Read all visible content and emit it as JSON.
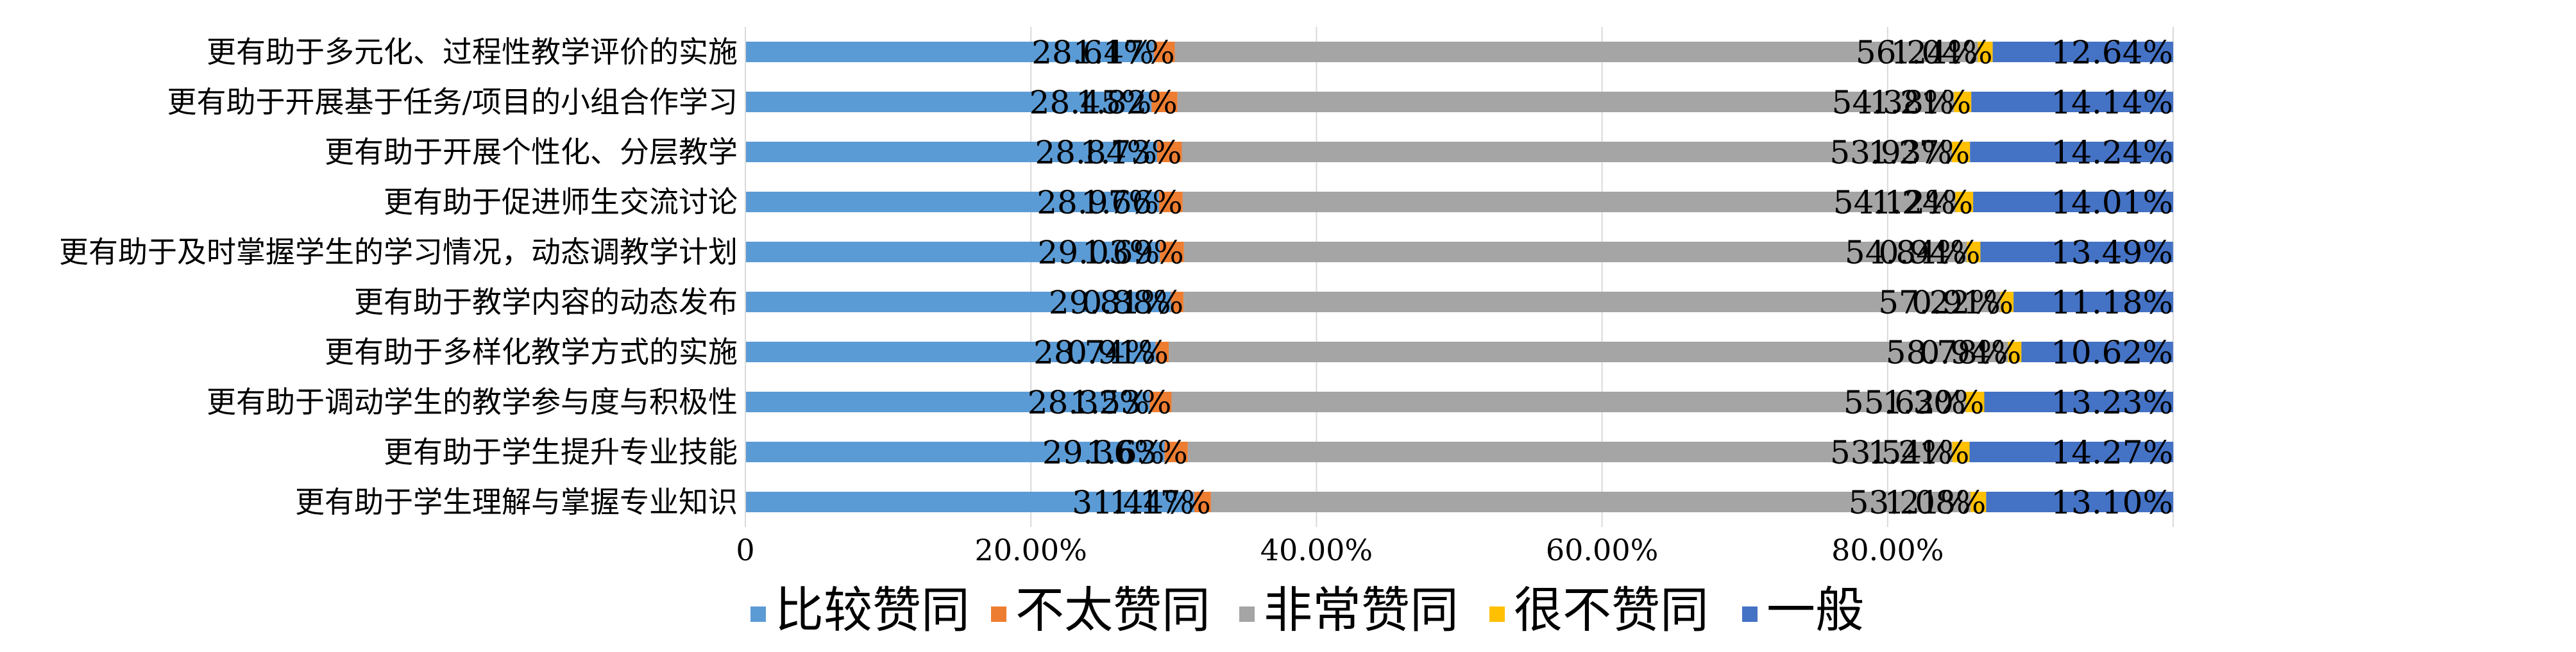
{
  "chart_data": {
    "type": "bar",
    "orientation": "horizontal",
    "stacked": "percent",
    "categories": [
      "更有助于多元化、过程性教学评价的实施",
      "更有助于开展基于任务/项目的小组合作学习",
      "更有助于开展个性化、分层教学",
      "更有助于促进师生交流讨论",
      "更有助于及时掌握学生的学习情况，动态调教学计划",
      "更有助于教学内容的动态发布",
      "更有助于多样化教学方式的实施",
      "更有助于调动学生的教学参与度与积极性",
      "更有助于学生提升专业技能",
      "更有助于学生理解与掌握专业知识"
    ],
    "series": [
      {
        "name": "比较赞同",
        "color": "#5B9BD5",
        "values": [
          28.61,
          28.45,
          28.84,
          28.97,
          29.03,
          29.81,
          28.74,
          28.32,
          29.36,
          31.44
        ],
        "labels": [
          "28.61%",
          "28.45%",
          "28.84%",
          "28.97%",
          "29.03%",
          "29.81%",
          "28.74%",
          "28.32%",
          "29.36%",
          "31.44%"
        ]
      },
      {
        "name": "不太赞同",
        "color": "#ED7D31",
        "values": [
          1.47,
          1.82,
          1.73,
          1.66,
          1.69,
          0.88,
          0.91,
          1.53,
          1.63,
          1.17
        ],
        "labels": [
          "1.47%",
          "1.82%",
          "1.73%",
          "1.66%",
          "1.69%",
          "0.88%",
          "0.91%",
          "1.53%",
          "1.63%",
          "1.17%"
        ]
      },
      {
        "name": "非常赞同",
        "color": "#A5A5A5",
        "values": [
          56.24,
          54.38,
          53.93,
          54.12,
          54.84,
          57.22,
          58.78,
          55.62,
          53.54,
          53.21
        ],
        "labels": [
          "56.24%",
          "54.38%",
          "53.93%",
          "54.12%",
          "54.84%",
          "57.22%",
          "58.78%",
          "55.62%",
          "53.54%",
          "53.21%"
        ]
      },
      {
        "name": "很不赞同",
        "color": "#FFC000",
        "values": [
          1.04,
          1.21,
          1.27,
          1.24,
          0.94,
          0.91,
          0.94,
          1.3,
          1.21,
          1.08
        ],
        "labels": [
          "1.04%",
          "1.21%",
          "1.27%",
          "1.24%",
          "0.94%",
          "0.91%",
          "0.94%",
          "1.30%",
          "1.21%",
          "1.08%"
        ]
      },
      {
        "name": "一般",
        "color": "#4472C4",
        "values": [
          12.64,
          14.14,
          14.24,
          14.01,
          13.49,
          11.18,
          10.62,
          13.23,
          14.27,
          13.1
        ],
        "labels": [
          "12.64%",
          "14.14%",
          "14.24%",
          "14.01%",
          "13.49%",
          "11.18%",
          "10.62%",
          "13.23%",
          "14.27%",
          "13.10%"
        ]
      }
    ],
    "xaxis": {
      "tick_values": [
        0,
        20,
        40,
        60,
        80
      ],
      "tick_labels": [
        "0",
        "20.00%",
        "40.00%",
        "60.00%",
        "80.00%"
      ],
      "range": [
        0,
        100
      ]
    },
    "grid": true,
    "legend_position": "bottom"
  }
}
